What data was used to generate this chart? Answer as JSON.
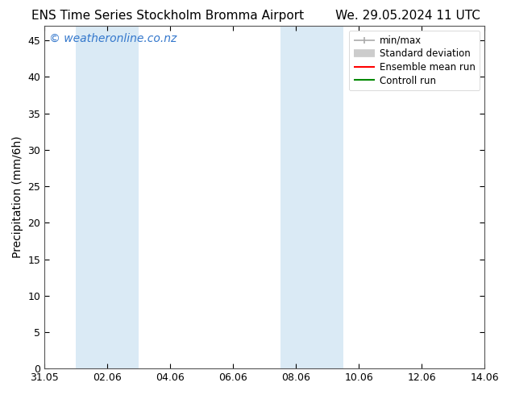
{
  "title_left": "ENS Time Series Stockholm Bromma Airport",
  "title_right": "We. 29.05.2024 11 UTC",
  "ylabel": "Precipitation (mm/6h)",
  "ylim": [
    0,
    47
  ],
  "yticks": [
    0,
    5,
    10,
    15,
    20,
    25,
    30,
    35,
    40,
    45
  ],
  "xtick_labels": [
    "31.05",
    "02.06",
    "04.06",
    "06.06",
    "08.06",
    "10.06",
    "12.06",
    "14.06"
  ],
  "xtick_positions": [
    0,
    2,
    4,
    6,
    8,
    10,
    12,
    14
  ],
  "xlim": [
    0,
    14
  ],
  "shaded_regions": [
    {
      "x_start": 1.0,
      "x_end": 3.0,
      "color": "#daeaf5"
    },
    {
      "x_start": 7.5,
      "x_end": 9.5,
      "color": "#daeaf5"
    }
  ],
  "watermark_text": "© weatheronline.co.nz",
  "watermark_color": "#3377cc",
  "watermark_fontsize": 10,
  "background_color": "#ffffff",
  "legend_items": [
    {
      "label": "min/max",
      "color": "#aaaaaa",
      "lw": 1.2,
      "type": "minmax"
    },
    {
      "label": "Standard deviation",
      "color": "#cccccc",
      "lw": 7,
      "type": "band"
    },
    {
      "label": "Ensemble mean run",
      "color": "#ff0000",
      "lw": 1.5,
      "type": "line"
    },
    {
      "label": "Controll run",
      "color": "#008800",
      "lw": 1.5,
      "type": "line"
    }
  ],
  "title_fontsize": 11,
  "axis_label_fontsize": 10,
  "tick_fontsize": 9,
  "legend_fontsize": 8.5
}
